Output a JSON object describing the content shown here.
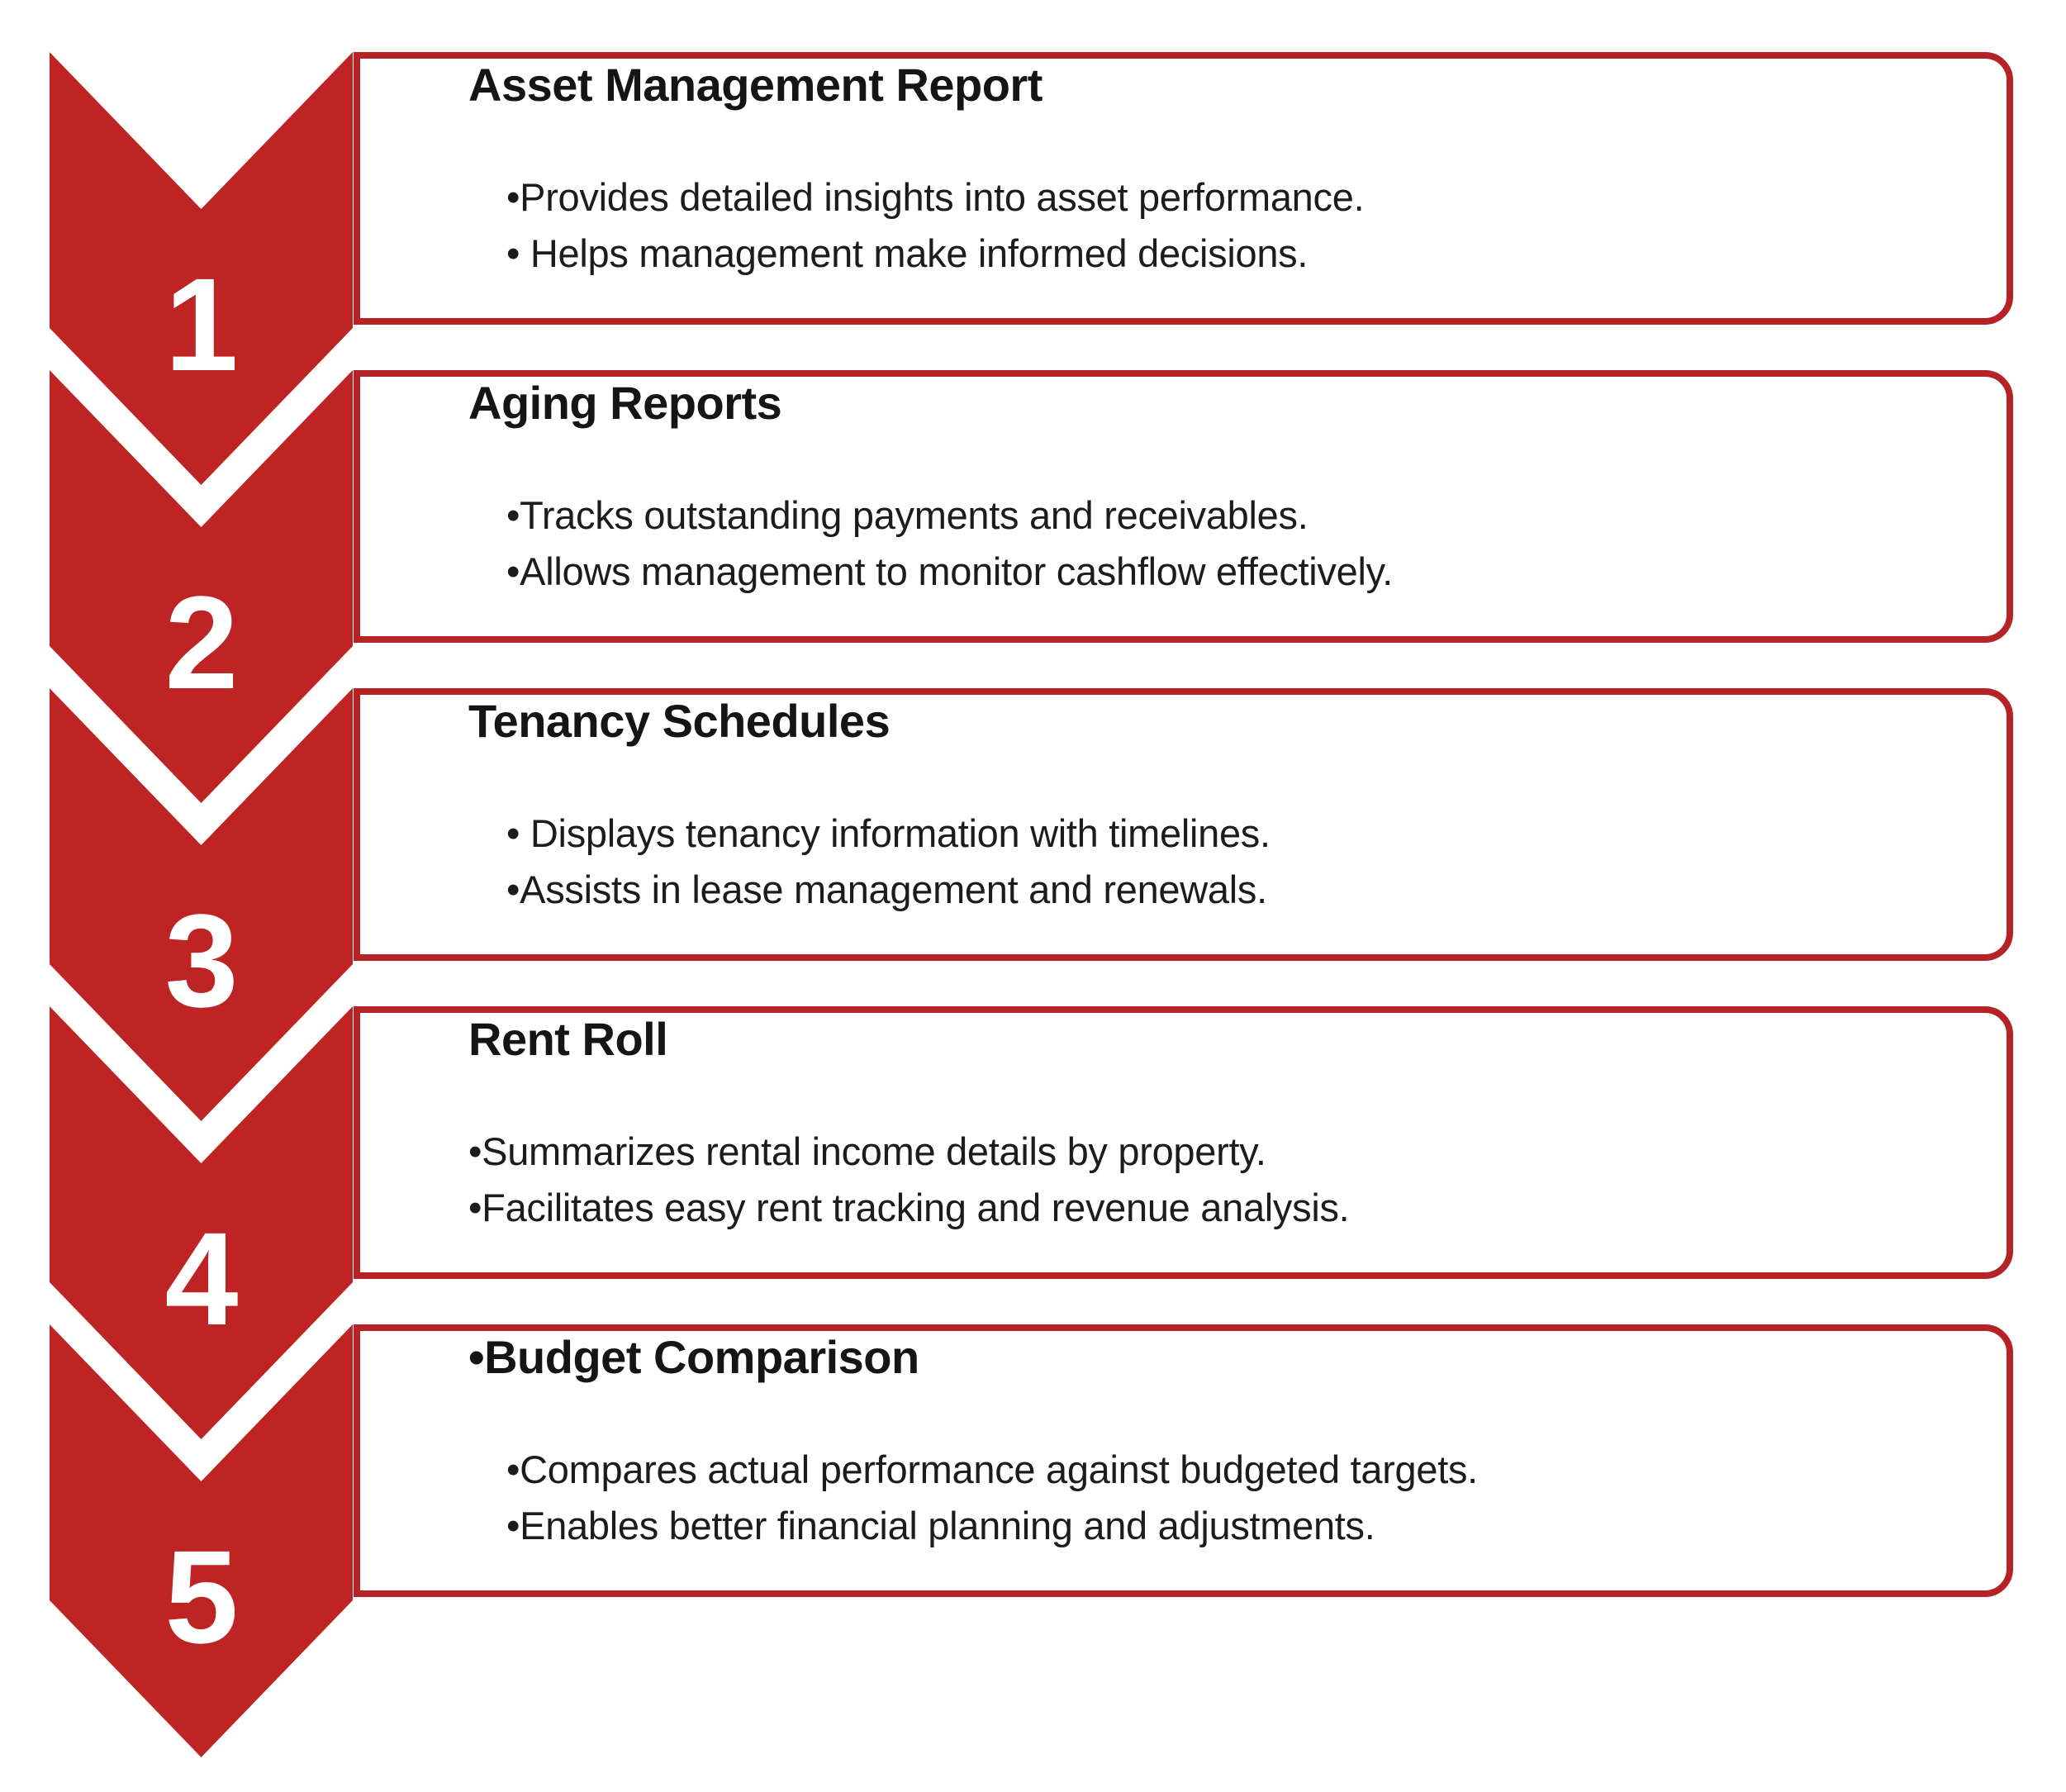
{
  "colors": {
    "chevron_red": "#be2423",
    "card_border_red": "#b52327",
    "title_text": "#151515",
    "body_text": "#1c1c1c",
    "number_text": "#ffffff",
    "background": "#ffffff"
  },
  "items": [
    {
      "number": "1",
      "title": "Asset Management Report",
      "bullets": [
        "•Provides detailed insights into asset performance.",
        "• Helps management make informed decisions."
      ],
      "bullet_indent": true
    },
    {
      "number": "2",
      "title": "Aging Reports",
      "bullets": [
        "•Tracks outstanding payments and receivables.",
        "•Allows management to monitor cashflow effectively."
      ],
      "bullet_indent": true
    },
    {
      "number": "3",
      "title": "Tenancy Schedules",
      "bullets": [
        "• Displays tenancy information with timelines.",
        "•Assists in lease management and renewals."
      ],
      "bullet_indent": true
    },
    {
      "number": "4",
      "title": "Rent Roll",
      "bullets": [
        "•Summarizes rental income details by property.",
        "•Facilitates easy rent tracking and revenue analysis."
      ],
      "bullet_indent": false
    },
    {
      "number": "5",
      "title": "•Budget Comparison",
      "bullets": [
        "•Compares actual performance against budgeted targets.",
        "•Enables better financial planning and adjustments."
      ],
      "bullet_indent": true
    }
  ]
}
